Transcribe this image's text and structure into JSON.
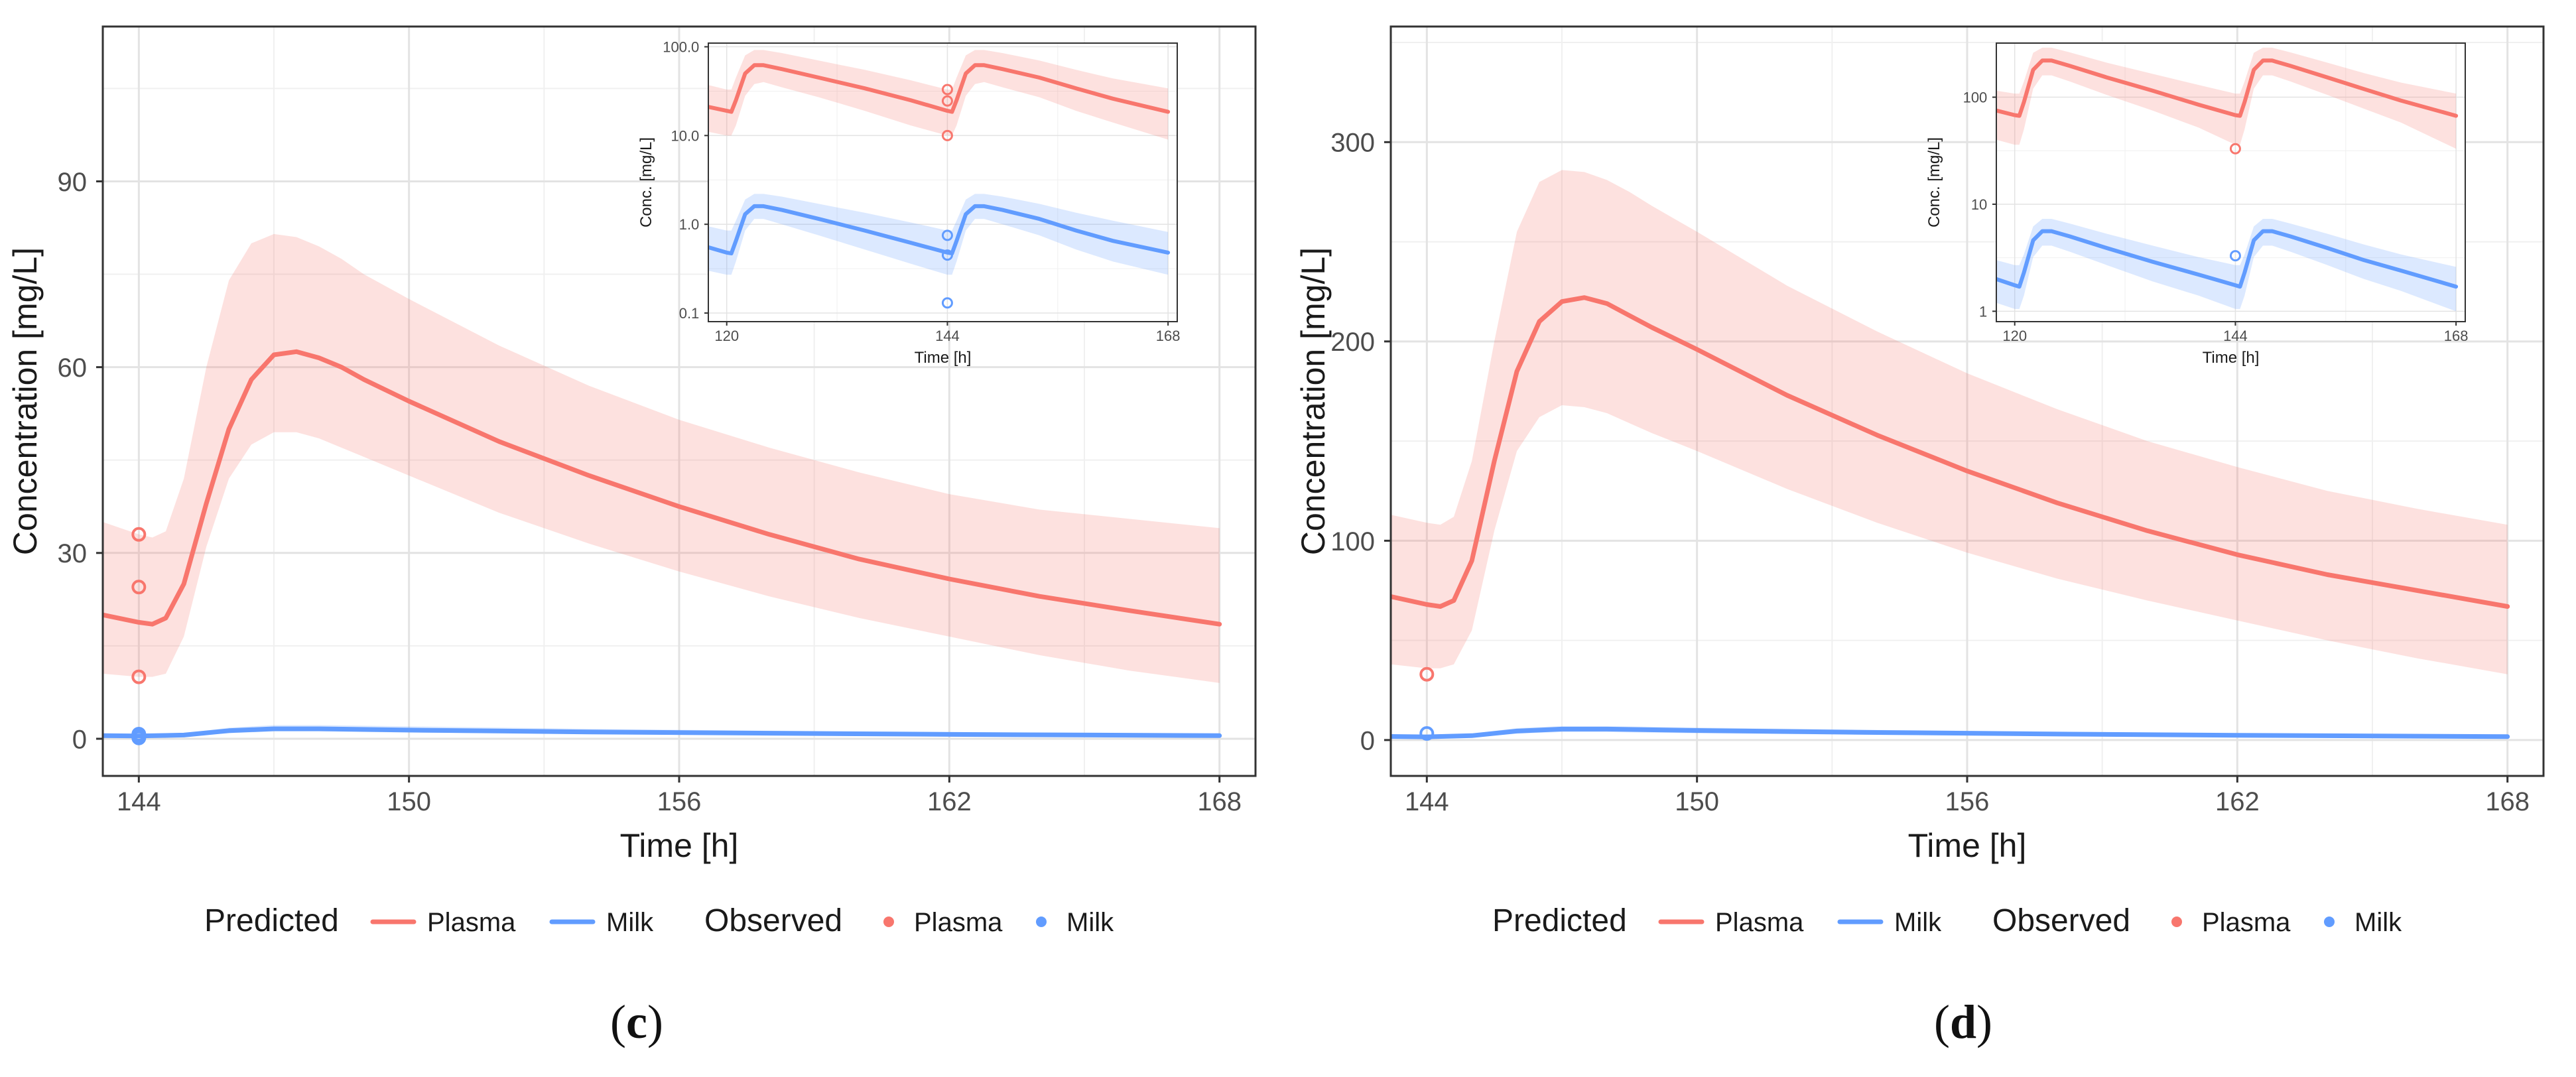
{
  "chart_data": [
    {
      "type": "line",
      "panel": "c",
      "caption_open": "(",
      "caption_letter": "c",
      "caption_close": ")",
      "xlabel": "Time [h]",
      "ylabel": "Concentration [mg/L]",
      "xlim": [
        143.2,
        168.8
      ],
      "ylim": [
        -6,
        115
      ],
      "x_ticks": [
        144,
        150,
        156,
        162,
        168
      ],
      "y_ticks": [
        0,
        30,
        60,
        90
      ],
      "series": [
        {
          "name": "Plasma",
          "kind": "predicted",
          "color": "#f8766d",
          "x": [
            143.2,
            144.0,
            144.3,
            144.6,
            145.0,
            145.5,
            146.0,
            146.5,
            147.0,
            147.5,
            148.0,
            148.5,
            149.0,
            150.0,
            152.0,
            154.0,
            156.0,
            158.0,
            160.0,
            162.0,
            164.0,
            166.0,
            168.0
          ],
          "y": [
            20.0,
            18.8,
            18.5,
            19.5,
            25.0,
            38.0,
            50.0,
            58.0,
            62.0,
            62.5,
            61.5,
            60.0,
            58.0,
            54.5,
            48.0,
            42.5,
            37.5,
            33.0,
            29.0,
            25.8,
            23.0,
            20.7,
            18.5
          ],
          "lower": [
            10.5,
            10.0,
            10.0,
            10.5,
            16.5,
            31.0,
            42.0,
            47.5,
            49.5,
            49.5,
            48.5,
            47.0,
            45.5,
            42.5,
            36.5,
            31.5,
            27.0,
            23.0,
            19.5,
            16.5,
            13.5,
            11.0,
            9.0
          ],
          "upper": [
            35.0,
            33.0,
            32.5,
            33.5,
            42.0,
            60.0,
            74.0,
            80.0,
            81.5,
            81.0,
            79.5,
            77.5,
            75.0,
            71.0,
            63.5,
            57.0,
            51.5,
            47.0,
            43.0,
            39.5,
            37.0,
            35.5,
            34.0
          ]
        },
        {
          "name": "Milk",
          "kind": "predicted",
          "color": "#619cff",
          "x": [
            143.2,
            144.0,
            145.0,
            146.0,
            147.0,
            148.0,
            150.0,
            154.0,
            158.0,
            162.0,
            168.0
          ],
          "y": [
            0.5,
            0.45,
            0.6,
            1.3,
            1.6,
            1.6,
            1.4,
            1.1,
            0.9,
            0.7,
            0.5
          ],
          "lower": [
            0.3,
            0.3,
            0.4,
            0.9,
            1.2,
            1.2,
            1.0,
            0.8,
            0.6,
            0.5,
            0.3
          ],
          "upper": [
            0.8,
            0.7,
            0.9,
            1.8,
            2.2,
            2.2,
            2.0,
            1.6,
            1.3,
            1.1,
            0.8
          ]
        },
        {
          "name": "Plasma",
          "kind": "observed",
          "color": "#f8766d",
          "x": [
            144,
            144,
            144
          ],
          "y": [
            33.0,
            24.5,
            10.0
          ]
        },
        {
          "name": "Milk",
          "kind": "observed",
          "color": "#619cff",
          "x": [
            144,
            144,
            144
          ],
          "y": [
            0.75,
            0.45,
            0.13
          ]
        }
      ],
      "inset": {
        "type": "line",
        "xlabel": "Time [h]",
        "ylabel": "Conc. [mg/L]",
        "yscale": "log",
        "xlim": [
          118,
          169
        ],
        "ylim": [
          0.08,
          110
        ],
        "x_ticks": [
          120,
          144,
          168
        ],
        "y_ticks": [
          0.1,
          1.0,
          10.0,
          100.0
        ],
        "y_tick_labels": [
          "0.1",
          "1.0",
          "10.0",
          "100.0"
        ],
        "series": [
          {
            "name": "Plasma",
            "kind": "predicted",
            "color": "#f8766d",
            "x": [
              118,
              120,
              120.5,
              121,
              122,
              123,
              124,
              126,
              130,
              135,
              140,
              144,
              144.5,
              145,
              146,
              147,
              148,
              150,
              154,
              158,
              162,
              168
            ],
            "y": [
              21.0,
              19.0,
              18.5,
              25.0,
              50.0,
              62.0,
              62.0,
              56.0,
              45.0,
              34.0,
              25.0,
              19.0,
              18.5,
              25.0,
              50.0,
              62.0,
              62.0,
              56.0,
              45.0,
              34.0,
              26.0,
              18.5
            ],
            "lower": [
              11.0,
              10.0,
              10.0,
              13.0,
              28.0,
              38.0,
              40.0,
              35.0,
              27.0,
              19.0,
              13.0,
              10.0,
              10.0,
              13.0,
              28.0,
              38.0,
              40.0,
              35.0,
              27.0,
              19.0,
              14.0,
              9.0
            ],
            "upper": [
              37.0,
              33.0,
              33.0,
              45.0,
              80.0,
              92.0,
              92.0,
              85.0,
              70.0,
              55.0,
              42.0,
              33.0,
              33.0,
              45.0,
              80.0,
              92.0,
              92.0,
              85.0,
              70.0,
              55.0,
              44.0,
              34.0
            ]
          },
          {
            "name": "Milk",
            "kind": "predicted",
            "color": "#619cff",
            "x": [
              118,
              120,
              120.5,
              121,
              122,
              123,
              124,
              126,
              130,
              135,
              140,
              144,
              144.5,
              145,
              146,
              147,
              148,
              150,
              154,
              158,
              162,
              168
            ],
            "y": [
              0.55,
              0.48,
              0.47,
              0.65,
              1.3,
              1.6,
              1.6,
              1.45,
              1.15,
              0.85,
              0.62,
              0.48,
              0.47,
              0.65,
              1.3,
              1.6,
              1.6,
              1.45,
              1.15,
              0.85,
              0.65,
              0.48
            ],
            "lower": [
              0.3,
              0.27,
              0.27,
              0.38,
              0.85,
              1.15,
              1.15,
              1.0,
              0.75,
              0.52,
              0.36,
              0.27,
              0.27,
              0.38,
              0.85,
              1.15,
              1.15,
              1.0,
              0.75,
              0.52,
              0.38,
              0.27
            ],
            "upper": [
              0.95,
              0.85,
              0.85,
              1.1,
              1.9,
              2.2,
              2.2,
              2.05,
              1.7,
              1.35,
              1.05,
              0.85,
              0.85,
              1.1,
              1.9,
              2.2,
              2.2,
              2.05,
              1.7,
              1.35,
              1.1,
              0.82
            ]
          },
          {
            "name": "Plasma",
            "kind": "observed",
            "color": "#f8766d",
            "x": [
              144,
              144,
              144
            ],
            "y": [
              33.0,
              24.5,
              10.0
            ]
          },
          {
            "name": "Milk",
            "kind": "observed",
            "color": "#619cff",
            "x": [
              144,
              144,
              144
            ],
            "y": [
              0.75,
              0.45,
              0.13
            ]
          }
        ]
      },
      "legend": {
        "position": "bottom",
        "predicted_title": "Predicted",
        "observed_title": "Observed",
        "predicted_items": [
          "Plasma",
          "Milk"
        ],
        "observed_items": [
          "Plasma",
          "Milk"
        ]
      }
    },
    {
      "type": "line",
      "panel": "d",
      "caption_open": "(",
      "caption_letter": "d",
      "caption_close": ")",
      "xlabel": "Time [h]",
      "ylabel": "Concentration [mg/L]",
      "xlim": [
        143.2,
        168.8
      ],
      "ylim": [
        -18,
        358
      ],
      "x_ticks": [
        144,
        150,
        156,
        162,
        168
      ],
      "y_ticks": [
        0,
        100,
        200,
        300
      ],
      "series": [
        {
          "name": "Plasma",
          "kind": "predicted",
          "color": "#f8766d",
          "x": [
            143.2,
            144.0,
            144.3,
            144.6,
            145.0,
            145.5,
            146.0,
            146.5,
            147.0,
            147.5,
            148.0,
            148.5,
            149.0,
            150.0,
            152.0,
            154.0,
            156.0,
            158.0,
            160.0,
            162.0,
            164.0,
            166.0,
            168.0
          ],
          "y": [
            72.0,
            68.0,
            67.0,
            70.0,
            90.0,
            140.0,
            185.0,
            210.0,
            220.0,
            222.0,
            219.0,
            213.0,
            207.0,
            196.0,
            173.0,
            153.0,
            135.0,
            119.0,
            105.0,
            93.0,
            83.0,
            75.0,
            67.0
          ],
          "lower": [
            38.0,
            36.0,
            36.0,
            38.0,
            55.0,
            105.0,
            145.0,
            162.0,
            168.0,
            167.0,
            164.0,
            159.0,
            154.0,
            145.0,
            126.0,
            109.0,
            94.0,
            81.0,
            70.0,
            60.0,
            50.0,
            41.0,
            33.0
          ],
          "upper": [
            113.0,
            109.0,
            108.0,
            112.0,
            140.0,
            200.0,
            255.0,
            280.0,
            286.0,
            285.0,
            281.0,
            275.0,
            268.0,
            255.0,
            228.0,
            205.0,
            184.0,
            166.0,
            150.0,
            137.0,
            125.0,
            116.0,
            108.0
          ]
        },
        {
          "name": "Milk",
          "kind": "predicted",
          "color": "#619cff",
          "x": [
            143.2,
            144.0,
            145.0,
            146.0,
            147.0,
            148.0,
            150.0,
            154.0,
            158.0,
            162.0,
            168.0
          ],
          "y": [
            1.8,
            1.6,
            2.2,
            4.5,
            5.5,
            5.5,
            4.8,
            3.8,
            3.0,
            2.4,
            1.7
          ],
          "lower": [
            1.0,
            1.0,
            1.3,
            3.2,
            4.0,
            4.0,
            3.4,
            2.6,
            2.0,
            1.6,
            1.0
          ],
          "upper": [
            2.8,
            2.5,
            3.2,
            6.0,
            7.0,
            7.0,
            6.3,
            5.1,
            4.2,
            3.4,
            2.6
          ]
        },
        {
          "name": "Plasma",
          "kind": "observed",
          "color": "#f8766d",
          "x": [
            144
          ],
          "y": [
            33.0
          ]
        },
        {
          "name": "Milk",
          "kind": "observed",
          "color": "#619cff",
          "x": [
            144
          ],
          "y": [
            3.3
          ]
        }
      ],
      "inset": {
        "type": "line",
        "xlabel": "Time [h]",
        "ylabel": "Conc. [mg/L]",
        "yscale": "log",
        "xlim": [
          118,
          169
        ],
        "ylim": [
          0.8,
          320
        ],
        "x_ticks": [
          120,
          144,
          168
        ],
        "y_ticks": [
          1,
          10,
          100
        ],
        "y_tick_labels": [
          "1",
          "10",
          "100"
        ],
        "series": [
          {
            "name": "Plasma",
            "kind": "predicted",
            "color": "#f8766d",
            "x": [
              118,
              120,
              120.5,
              121,
              122,
              123,
              124,
              126,
              130,
              135,
              140,
              144,
              144.5,
              145,
              146,
              147,
              148,
              150,
              154,
              158,
              162,
              168
            ],
            "y": [
              75.0,
              68.0,
              67.0,
              90.0,
              180.0,
              220.0,
              220.0,
              196.0,
              153.0,
              115.0,
              85.0,
              68.0,
              67.0,
              90.0,
              180.0,
              220.0,
              220.0,
              196.0,
              153.0,
              119.0,
              93.0,
              67.0
            ],
            "lower": [
              40.0,
              36.0,
              36.0,
              50.0,
              120.0,
              160.0,
              160.0,
              140.0,
              105.0,
              75.0,
              52.0,
              36.0,
              36.0,
              50.0,
              120.0,
              160.0,
              160.0,
              140.0,
              105.0,
              78.0,
              58.0,
              33.0
            ],
            "upper": [
              115.0,
              108.0,
              108.0,
              140.0,
              260.0,
              290.0,
              290.0,
              262.0,
              210.0,
              165.0,
              130.0,
              108.0,
              108.0,
              140.0,
              260.0,
              290.0,
              290.0,
              262.0,
              210.0,
              168.0,
              137.0,
              108.0
            ]
          },
          {
            "name": "Milk",
            "kind": "predicted",
            "color": "#619cff",
            "x": [
              118,
              120,
              120.5,
              121,
              122,
              123,
              124,
              126,
              130,
              135,
              140,
              144,
              144.5,
              145,
              146,
              147,
              148,
              150,
              154,
              158,
              162,
              168
            ],
            "y": [
              2.0,
              1.75,
              1.7,
              2.3,
              4.6,
              5.6,
              5.6,
              5.0,
              3.9,
              2.9,
              2.2,
              1.75,
              1.7,
              2.3,
              4.6,
              5.6,
              5.6,
              5.0,
              3.9,
              3.0,
              2.4,
              1.7
            ],
            "lower": [
              1.2,
              1.05,
              1.05,
              1.4,
              3.2,
              4.1,
              4.1,
              3.6,
              2.7,
              1.9,
              1.4,
              1.05,
              1.05,
              1.4,
              3.2,
              4.1,
              4.1,
              3.6,
              2.7,
              2.0,
              1.55,
              1.0
            ],
            "upper": [
              3.0,
              2.7,
              2.7,
              3.4,
              6.2,
              7.3,
              7.3,
              6.6,
              5.3,
              4.1,
              3.2,
              2.7,
              2.7,
              3.4,
              6.2,
              7.3,
              7.3,
              6.6,
              5.3,
              4.2,
              3.4,
              2.6
            ]
          },
          {
            "name": "Plasma",
            "kind": "observed",
            "color": "#f8766d",
            "x": [
              144
            ],
            "y": [
              33.0
            ]
          },
          {
            "name": "Milk",
            "kind": "observed",
            "color": "#619cff",
            "x": [
              144
            ],
            "y": [
              3.3
            ]
          }
        ]
      },
      "legend": {
        "position": "bottom",
        "predicted_title": "Predicted",
        "observed_title": "Observed",
        "predicted_items": [
          "Plasma",
          "Milk"
        ],
        "observed_items": [
          "Plasma",
          "Milk"
        ]
      }
    }
  ]
}
